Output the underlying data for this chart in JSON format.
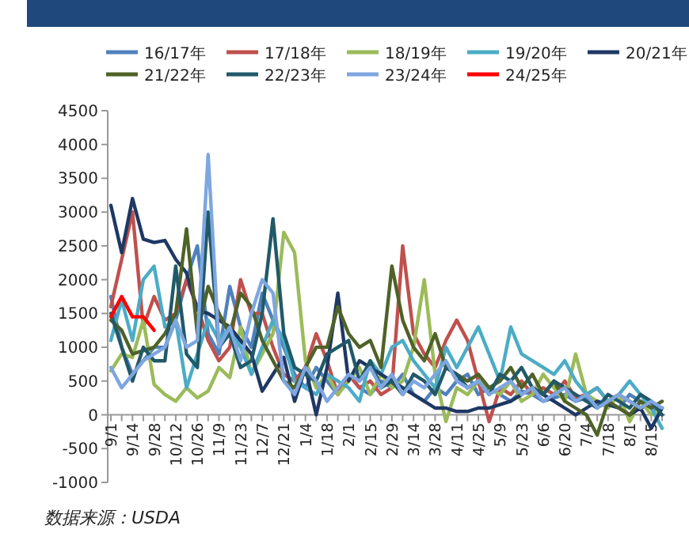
{
  "chart_data": {
    "type": "line",
    "categories": [
      "9/1",
      null,
      "9/14",
      null,
      "9/28",
      null,
      "10/12",
      null,
      "10/26",
      null,
      "11/9",
      null,
      "11/23",
      null,
      "12/7",
      null,
      "12/21",
      null,
      "1/4",
      null,
      "1/18",
      null,
      "2/1",
      null,
      "2/15",
      null,
      "2/29",
      null,
      "3/14",
      null,
      "3/28",
      null,
      "4/11",
      null,
      "4/25",
      null,
      "5/9",
      null,
      "5/23",
      null,
      "6/6",
      null,
      "6/20",
      null,
      "7/4",
      null,
      "7/18",
      null,
      "8/1",
      null,
      "8/15",
      null
    ],
    "series": [
      {
        "name": "16/17年",
        "color": "#4f81bd",
        "values": [
          1750,
          1000,
          600,
          800,
          1000,
          1000,
          1400,
          2000,
          2500,
          1200,
          900,
          1900,
          1300,
          1000,
          1800,
          1400,
          1000,
          600,
          400,
          700,
          500,
          300,
          600,
          400,
          300,
          500,
          400,
          600,
          300,
          200,
          400,
          300,
          500,
          600,
          300,
          400,
          300,
          200,
          350,
          300,
          200,
          250,
          300,
          200,
          250,
          150,
          200,
          100,
          300,
          200,
          100,
          0
        ]
      },
      {
        "name": "17/18年",
        "color": "#c0504d",
        "values": [
          1600,
          2300,
          3000,
          1300,
          1750,
          1400,
          1500,
          2000,
          1600,
          1100,
          800,
          1000,
          2000,
          1500,
          1500,
          1000,
          600,
          500,
          700,
          1200,
          800,
          300,
          600,
          400,
          500,
          300,
          400,
          2500,
          1200,
          900,
          700,
          1100,
          1400,
          1100,
          500,
          -100,
          400,
          300,
          500,
          300,
          400,
          300,
          500,
          250,
          300,
          400,
          200,
          300,
          200,
          100,
          150,
          100
        ]
      },
      {
        "name": "18/19年",
        "color": "#9bbb59",
        "values": [
          650,
          900,
          850,
          1400,
          450,
          300,
          200,
          400,
          250,
          350,
          700,
          550,
          1300,
          600,
          900,
          1200,
          2700,
          2400,
          800,
          400,
          600,
          300,
          500,
          700,
          300,
          600,
          400,
          500,
          1000,
          2000,
          600,
          -100,
          400,
          300,
          500,
          400,
          300,
          500,
          200,
          300,
          600,
          400,
          200,
          900,
          300,
          200,
          100,
          300,
          -100,
          200,
          0,
          100
        ]
      },
      {
        "name": "19/20年",
        "color": "#4bacc6",
        "values": [
          1100,
          1700,
          1100,
          2000,
          2200,
          1300,
          1400,
          400,
          900,
          1400,
          1100,
          1300,
          1000,
          600,
          1000,
          1400,
          1100,
          500,
          400,
          300,
          600,
          500,
          400,
          200,
          800,
          600,
          1000,
          1100,
          800,
          600,
          400,
          1000,
          700,
          1000,
          1300,
          900,
          500,
          1300,
          900,
          800,
          700,
          600,
          800,
          500,
          300,
          400,
          200,
          300,
          500,
          300,
          100,
          -200
        ]
      },
      {
        "name": "20/21年",
        "color": "#1f3864",
        "values": [
          3100,
          2400,
          3200,
          2600,
          2550,
          2580,
          2300,
          2100,
          1550,
          1500,
          1400,
          1300,
          1100,
          900,
          350,
          600,
          850,
          200,
          700,
          0,
          700,
          1800,
          500,
          800,
          700,
          600,
          500,
          400,
          300,
          200,
          100,
          100,
          50,
          50,
          100,
          100,
          150,
          200,
          300,
          400,
          300,
          200,
          100,
          0,
          100,
          200,
          150,
          100,
          0,
          100,
          -200,
          100
        ]
      },
      {
        "name": "21/22年",
        "color": "#4f6228",
        "values": [
          1400,
          1250,
          900,
          950,
          1000,
          1200,
          1500,
          2750,
          1200,
          1900,
          1500,
          1200,
          1800,
          1600,
          1100,
          800,
          500,
          400,
          700,
          1000,
          1000,
          1600,
          1200,
          1000,
          1100,
          700,
          2200,
          1400,
          1000,
          800,
          1200,
          700,
          600,
          500,
          600,
          400,
          500,
          700,
          400,
          600,
          300,
          500,
          200,
          100,
          0,
          -300,
          200,
          100,
          0,
          200,
          100,
          200
        ]
      },
      {
        "name": "22/23年",
        "color": "#215968",
        "values": [
          1500,
          1000,
          500,
          1000,
          800,
          800,
          2200,
          900,
          700,
          3000,
          1000,
          1200,
          700,
          800,
          1500,
          2900,
          1200,
          700,
          600,
          500,
          900,
          1000,
          1100,
          500,
          800,
          400,
          500,
          300,
          600,
          500,
          300,
          700,
          600,
          400,
          500,
          300,
          600,
          500,
          700,
          400,
          300,
          500,
          400,
          300,
          200,
          100,
          300,
          200,
          100,
          300,
          200,
          0
        ]
      },
      {
        "name": "23/24年",
        "color": "#7ea6e0",
        "values": [
          700,
          400,
          600,
          800,
          900,
          1000,
          1400,
          1000,
          1100,
          3850,
          1000,
          1300,
          800,
          1500,
          2000,
          1800,
          500,
          300,
          700,
          500,
          200,
          400,
          600,
          500,
          700,
          400,
          600,
          300,
          500,
          400,
          600,
          800,
          500,
          400,
          500,
          300,
          400,
          500,
          300,
          400,
          200,
          300,
          400,
          200,
          300,
          100,
          200,
          300,
          200,
          100,
          200,
          100
        ]
      },
      {
        "name": "24/25年",
        "color": "#ff0000",
        "values": [
          1450,
          1750,
          1450,
          1450,
          1250,
          null,
          null,
          null,
          null,
          null,
          null,
          null,
          null,
          null,
          null,
          null,
          null,
          null,
          null,
          null,
          null,
          null,
          null,
          null,
          null,
          null,
          null,
          null,
          null,
          null,
          null,
          null,
          null,
          null,
          null,
          null,
          null,
          null,
          null,
          null,
          null,
          null,
          null,
          null,
          null,
          null,
          null,
          null,
          null,
          null,
          null,
          null
        ]
      }
    ],
    "ylim": [
      -1000,
      4500
    ],
    "yticks": [
      -1000,
      -500,
      0,
      500,
      1000,
      1500,
      2000,
      2500,
      3000,
      3500,
      4000,
      4500
    ],
    "legend": "top",
    "grid": false,
    "marker": "none",
    "annotations": [
      "数据来源：USDA"
    ]
  }
}
